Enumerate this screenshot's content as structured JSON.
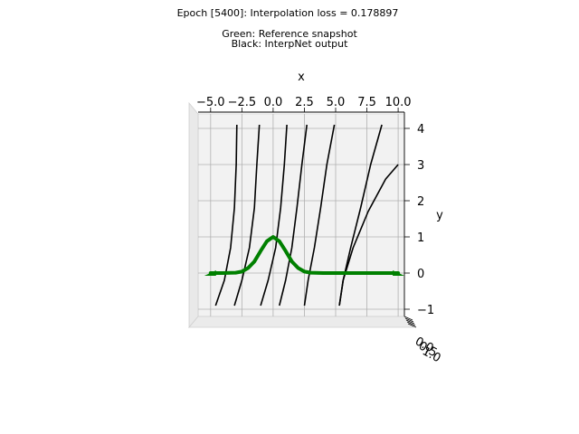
{
  "chart_data": {
    "type": "line",
    "title": "Epoch [5400]: Interpolation loss = 0.178897",
    "legend_lines": [
      "Green: Reference snapshot",
      "Black: InterpNet output"
    ],
    "xlabel": "x",
    "ylabel": "y",
    "xlim": [
      -6.0,
      10.5
    ],
    "ylim": [
      -1.2,
      4.4
    ],
    "x_ticks": [
      -5.0,
      -2.5,
      0.0,
      2.5,
      5.0,
      7.5,
      10.0
    ],
    "x_tick_labels": [
      "−5.0",
      "−2.5",
      "0.0",
      "2.5",
      "5.0",
      "7.5",
      "10.0"
    ],
    "y_ticks": [
      -1,
      0,
      1,
      2,
      3,
      4
    ],
    "y_tick_labels": [
      "−1",
      "0",
      "1",
      "2",
      "3",
      "4"
    ],
    "z_tick_labels": [
      "0.0",
      "0.5",
      "1.0"
    ],
    "grid": true,
    "colors": {
      "reference": "#008000",
      "interpnet": "#000000",
      "pane": "#f2f2f2",
      "grid": "#b0b0b0"
    },
    "series": [
      {
        "name": "Reference snapshot",
        "color": "#008000",
        "x": [
          -5.0,
          -4.0,
          -3.0,
          -2.5,
          -2.0,
          -1.5,
          -1.0,
          -0.5,
          0.0,
          0.5,
          1.0,
          1.5,
          2.0,
          2.5,
          3.0,
          4.0,
          6.0,
          8.0,
          10.0
        ],
        "y": [
          0.0,
          0.0,
          0.01,
          0.04,
          0.14,
          0.32,
          0.61,
          0.88,
          1.0,
          0.88,
          0.61,
          0.32,
          0.14,
          0.04,
          0.01,
          0.0,
          0.0,
          0.0,
          0.0
        ]
      },
      {
        "name": "InterpNet output",
        "color": "#000000",
        "lines": [
          {
            "x": [
              -4.6,
              -3.9,
              -3.4,
              -3.1,
              -2.95,
              -2.9
            ],
            "y": [
              -0.9,
              -0.2,
              0.7,
              1.8,
              3.0,
              4.1
            ]
          },
          {
            "x": [
              -3.1,
              -2.5,
              -1.9,
              -1.5,
              -1.3,
              -1.1
            ],
            "y": [
              -0.9,
              -0.2,
              0.7,
              1.8,
              3.0,
              4.1
            ]
          },
          {
            "x": [
              -1.0,
              -0.4,
              0.2,
              0.6,
              0.9,
              1.1
            ],
            "y": [
              -0.9,
              -0.2,
              0.7,
              1.8,
              3.0,
              4.1
            ]
          },
          {
            "x": [
              0.5,
              1.0,
              1.5,
              1.9,
              2.3,
              2.7
            ],
            "y": [
              -0.9,
              -0.2,
              0.7,
              1.8,
              3.0,
              4.1
            ]
          },
          {
            "x": [
              2.5,
              2.8,
              3.3,
              3.8,
              4.3,
              4.9
            ],
            "y": [
              -0.9,
              -0.2,
              0.7,
              1.8,
              3.0,
              4.1
            ]
          },
          {
            "x": [
              5.3,
              5.6,
              6.2,
              7.0,
              7.8,
              8.7
            ],
            "y": [
              -0.9,
              -0.2,
              0.7,
              1.8,
              3.0,
              4.1
            ]
          },
          {
            "x": [
              5.3,
              5.6,
              6.4,
              7.6,
              9.0,
              10.0
            ],
            "y": [
              -0.9,
              -0.2,
              0.7,
              1.7,
              2.6,
              3.0
            ]
          }
        ]
      }
    ]
  }
}
